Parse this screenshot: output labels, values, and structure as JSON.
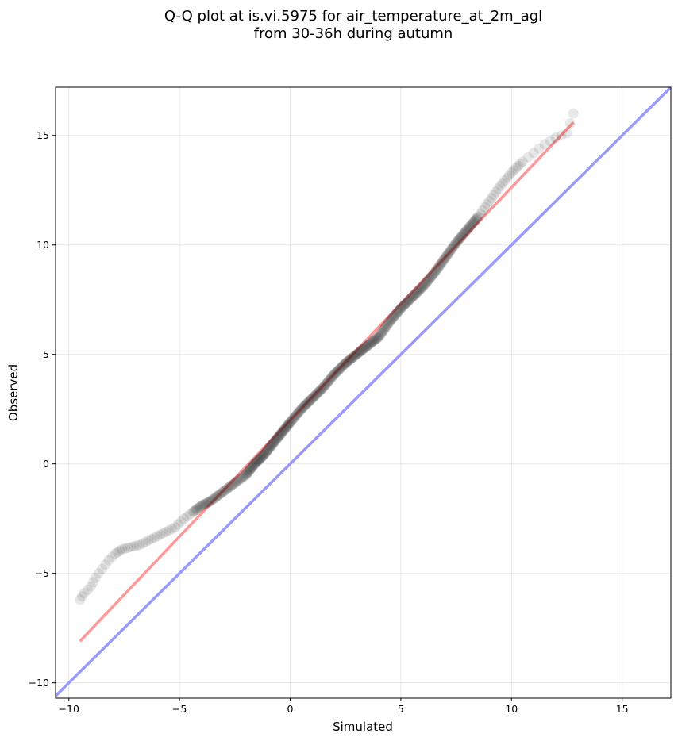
{
  "chart_data": {
    "type": "scatter",
    "title_line1": "Q-Q plot at is.vi.5975 for air_temperature_at_2m_agl",
    "title_line2": "from 30-36h during autumn",
    "xlabel": "Simulated",
    "ylabel": "Observed",
    "xlim": [
      -10.6,
      17.2
    ],
    "ylim": [
      -10.7,
      17.2
    ],
    "xticks": [
      -10,
      -5,
      0,
      5,
      10,
      15
    ],
    "yticks": [
      -10,
      -5,
      0,
      5,
      10,
      15
    ],
    "xtick_labels": [
      "−10",
      "−5",
      "0",
      "5",
      "10",
      "15"
    ],
    "ytick_labels": [
      "−10",
      "−5",
      "0",
      "5",
      "10",
      "15"
    ],
    "grid": true,
    "quantiles": {
      "sim": [
        -9.5,
        -9.3,
        -9.0,
        -8.8,
        -8.5,
        -8.2,
        -7.9,
        -7.6,
        -7.2,
        -6.8,
        -6.4,
        -6.0,
        -5.6,
        -5.2,
        -4.8,
        -4.4,
        -4.0,
        -3.6,
        -3.2,
        -2.8,
        -2.4,
        -2.0,
        -1.6,
        -1.2,
        -0.8,
        -0.4,
        0.0,
        0.5,
        1.0,
        1.5,
        2.0,
        2.5,
        3.0,
        3.5,
        4.0,
        4.5,
        5.0,
        5.5,
        6.0,
        6.5,
        7.0,
        7.5,
        8.0,
        8.5,
        9.0,
        9.5,
        10.0,
        10.5,
        11.0,
        11.5,
        12.0,
        12.5,
        12.8
      ],
      "obs": [
        -6.2,
        -5.9,
        -5.6,
        -5.2,
        -4.8,
        -4.4,
        -4.1,
        -3.9,
        -3.8,
        -3.7,
        -3.5,
        -3.3,
        -3.1,
        -2.9,
        -2.5,
        -2.2,
        -1.9,
        -1.7,
        -1.4,
        -1.1,
        -0.8,
        -0.5,
        0.0,
        0.4,
        0.9,
        1.4,
        1.9,
        2.5,
        3.0,
        3.5,
        4.1,
        4.6,
        5.0,
        5.4,
        5.8,
        6.5,
        7.1,
        7.6,
        8.1,
        8.7,
        9.4,
        10.1,
        10.7,
        11.3,
        12.0,
        12.7,
        13.3,
        13.8,
        14.2,
        14.6,
        14.9,
        15.1,
        16.0
      ]
    },
    "fit_line": {
      "x": [
        -9.5,
        12.8
      ],
      "y": [
        -8.1,
        15.6
      ],
      "color": "#ff9999"
    },
    "identity_line": {
      "x": [
        -10.6,
        17.2
      ],
      "y": [
        -10.6,
        17.2
      ],
      "color": "#9999ff"
    },
    "point_color": "#000000"
  }
}
